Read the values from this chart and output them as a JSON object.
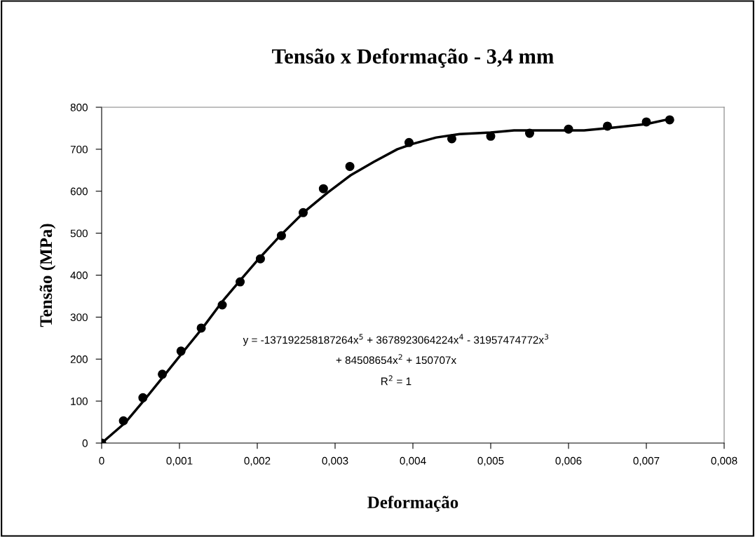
{
  "chart_data": {
    "type": "scatter",
    "title": "Tensão x Deformação - 3,4 mm",
    "xlabel": "Deformação",
    "ylabel": "Tensão (MPa)",
    "xlim": [
      0,
      0.008
    ],
    "xticks": [
      0,
      {
        "value": 0.001,
        "label": "0,001"
      },
      {
        "value": 0.002,
        "label": "0,002"
      },
      {
        "value": 0.003,
        "label": "0,003"
      },
      {
        "value": 0.004,
        "label": "0,004"
      },
      {
        "value": 0.005,
        "label": "0,005"
      },
      {
        "value": 0.006,
        "label": "0,006"
      },
      {
        "value": 0.007,
        "label": "0,007"
      },
      {
        "value": 0.008,
        "label": "0,008"
      }
    ],
    "ylim": [
      0,
      800
    ],
    "yticks": [
      0,
      100,
      200,
      300,
      400,
      500,
      600,
      700,
      800
    ],
    "grid": false,
    "legend": false,
    "series": [
      {
        "color": "#000000",
        "marker": "circle",
        "x": [
          0,
          0.00028,
          0.00053,
          0.00078,
          0.00102,
          0.00128,
          0.00155,
          0.00178,
          0.00204,
          0.00231,
          0.00259,
          0.00285,
          0.00319,
          0.00395,
          0.0045,
          0.005,
          0.0055,
          0.006,
          0.0065,
          0.007,
          0.0073
        ],
        "values": [
          0,
          53,
          108,
          164,
          219,
          274,
          329,
          384,
          439,
          494,
          549,
          606,
          659,
          716,
          725,
          731,
          738,
          748,
          755,
          765,
          770
        ]
      },
      {
        "type": "line",
        "color": "#000000",
        "marker": "none",
        "line_style": "solid",
        "x": [
          0,
          0.0003,
          0.00055,
          0.0008,
          0.00105,
          0.0013,
          0.00155,
          0.0018,
          0.002,
          0.0023,
          0.0026,
          0.0029,
          0.0032,
          0.0035,
          0.0038,
          0.004,
          0.0043,
          0.0046,
          0.005,
          0.0053,
          0.0058,
          0.0062,
          0.0066,
          0.007,
          0.0073
        ],
        "values": [
          0,
          48,
          103,
          160,
          218,
          275,
          337,
          392,
          435,
          495,
          550,
          596,
          638,
          670,
          700,
          713,
          728,
          736,
          740,
          745,
          745,
          745,
          752,
          760,
          772
        ]
      }
    ],
    "annotations": [
      "y = -137192258187264x$^{5}$ + 3678923064224x$^{4}$ - 31957474772x$^{3}$",
      "+ 84508654x$^{2}$ + 150707x",
      "R$^{2}$ = 1"
    ]
  }
}
